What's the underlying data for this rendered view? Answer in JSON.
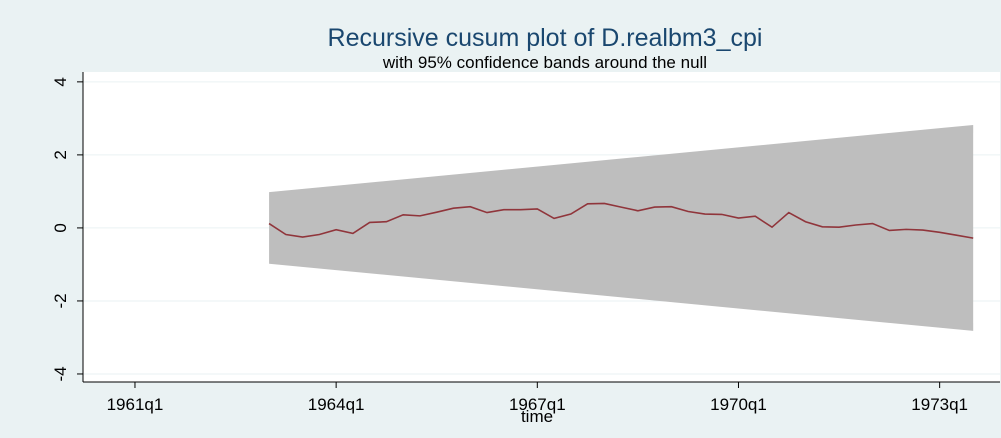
{
  "chart_data": {
    "type": "cusum",
    "title": "Recursive cusum plot of D.realbm3_cpi",
    "subtitle": "with 95% confidence bands around the null",
    "x_label": "time",
    "x": [
      12,
      13,
      14,
      15,
      16,
      17,
      18,
      19,
      20,
      21,
      22,
      23,
      24,
      25,
      26,
      27,
      28,
      29,
      30,
      31,
      32,
      33,
      34,
      35,
      36,
      37,
      38,
      39,
      40,
      41,
      42,
      43,
      44,
      45,
      46,
      47,
      48,
      49,
      50,
      51,
      52,
      53,
      54
    ],
    "series": [
      {
        "color": "#90353b",
        "values": [
          0.12,
          -0.18,
          -0.25,
          -0.18,
          -0.05,
          -0.15,
          0.15,
          0.17,
          0.36,
          0.33,
          0.43,
          0.54,
          0.58,
          0.42,
          0.5,
          0.5,
          0.52,
          0.26,
          0.38,
          0.66,
          0.67,
          0.57,
          0.47,
          0.57,
          0.58,
          0.45,
          0.38,
          0.37,
          0.27,
          0.32,
          0.02,
          0.42,
          0.17,
          0.03,
          0.02,
          0.08,
          0.12,
          -0.07,
          -0.04,
          -0.06,
          -0.12,
          -0.2,
          -0.28
        ]
      }
    ],
    "band": {
      "color": "#bebebe",
      "x": [
        12,
        54
      ],
      "upper": [
        0.98,
        2.82
      ],
      "lower": [
        -0.98,
        -2.82
      ]
    },
    "xlim": [
      0.9,
      55.6
    ],
    "xticks": [
      {
        "value": 4,
        "label": "1961q1"
      },
      {
        "value": 16,
        "label": "1964q1"
      },
      {
        "value": 28,
        "label": "1967q1"
      },
      {
        "value": 40,
        "label": "1970q1"
      },
      {
        "value": 52,
        "label": "1973q1"
      }
    ],
    "ylim": [
      -4.22,
      4.27
    ],
    "yticks": [
      -4,
      -2,
      0,
      2,
      4
    ],
    "grid": true
  }
}
